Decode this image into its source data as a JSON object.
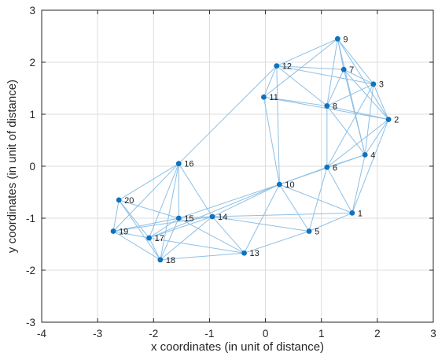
{
  "chart_data": {
    "type": "scatter",
    "title": "",
    "xlabel": "x coordinates (in unit of distance)",
    "ylabel": "y coordinates (in unit of distance)",
    "xlim": [
      -4,
      3
    ],
    "ylim": [
      -3,
      3
    ],
    "xticks": [
      -4,
      -3,
      -2,
      -1,
      0,
      1,
      2,
      3
    ],
    "yticks": [
      -3,
      -2,
      -1,
      0,
      1,
      2,
      3
    ],
    "grid": true,
    "colors": {
      "node": "#0f72bd",
      "edge": "#8ec0e6",
      "grid": "#dcdcdc",
      "axis": "#262626"
    },
    "nodes": [
      {
        "id": "1",
        "x": 1.55,
        "y": -0.9
      },
      {
        "id": "2",
        "x": 2.2,
        "y": 0.9
      },
      {
        "id": "3",
        "x": 1.93,
        "y": 1.58
      },
      {
        "id": "4",
        "x": 1.78,
        "y": 0.22
      },
      {
        "id": "5",
        "x": 0.78,
        "y": -1.25
      },
      {
        "id": "6",
        "x": 1.1,
        "y": -0.02
      },
      {
        "id": "7",
        "x": 1.4,
        "y": 1.86
      },
      {
        "id": "8",
        "x": 1.1,
        "y": 1.16
      },
      {
        "id": "9",
        "x": 1.29,
        "y": 2.45
      },
      {
        "id": "10",
        "x": 0.25,
        "y": -0.35
      },
      {
        "id": "11",
        "x": -0.03,
        "y": 1.33
      },
      {
        "id": "12",
        "x": 0.2,
        "y": 1.93
      },
      {
        "id": "13",
        "x": -0.38,
        "y": -1.67
      },
      {
        "id": "14",
        "x": -0.95,
        "y": -0.97
      },
      {
        "id": "15",
        "x": -1.55,
        "y": -1.0
      },
      {
        "id": "16",
        "x": -1.55,
        "y": 0.05
      },
      {
        "id": "17",
        "x": -2.08,
        "y": -1.38
      },
      {
        "id": "18",
        "x": -1.88,
        "y": -1.8
      },
      {
        "id": "19",
        "x": -2.72,
        "y": -1.25
      },
      {
        "id": "20",
        "x": -2.62,
        "y": -0.65
      }
    ],
    "edges": [
      [
        "9",
        "12"
      ],
      [
        "9",
        "7"
      ],
      [
        "9",
        "3"
      ],
      [
        "9",
        "2"
      ],
      [
        "9",
        "8"
      ],
      [
        "9",
        "4"
      ],
      [
        "9",
        "11"
      ],
      [
        "12",
        "7"
      ],
      [
        "12",
        "3"
      ],
      [
        "12",
        "8"
      ],
      [
        "12",
        "11"
      ],
      [
        "12",
        "10"
      ],
      [
        "12",
        "16"
      ],
      [
        "7",
        "3"
      ],
      [
        "7",
        "2"
      ],
      [
        "7",
        "8"
      ],
      [
        "7",
        "4"
      ],
      [
        "3",
        "2"
      ],
      [
        "3",
        "8"
      ],
      [
        "3",
        "4"
      ],
      [
        "3",
        "6"
      ],
      [
        "11",
        "8"
      ],
      [
        "11",
        "2"
      ],
      [
        "11",
        "10"
      ],
      [
        "8",
        "2"
      ],
      [
        "8",
        "6"
      ],
      [
        "8",
        "4"
      ],
      [
        "2",
        "4"
      ],
      [
        "2",
        "6"
      ],
      [
        "2",
        "1"
      ],
      [
        "4",
        "6"
      ],
      [
        "4",
        "1"
      ],
      [
        "4",
        "10"
      ],
      [
        "6",
        "10"
      ],
      [
        "6",
        "1"
      ],
      [
        "6",
        "5"
      ],
      [
        "10",
        "1"
      ],
      [
        "10",
        "5"
      ],
      [
        "10",
        "14"
      ],
      [
        "10",
        "13"
      ],
      [
        "10",
        "15"
      ],
      [
        "10",
        "17"
      ],
      [
        "1",
        "5"
      ],
      [
        "1",
        "14"
      ],
      [
        "5",
        "13"
      ],
      [
        "5",
        "14"
      ],
      [
        "13",
        "14"
      ],
      [
        "13",
        "15"
      ],
      [
        "13",
        "18"
      ],
      [
        "13",
        "17"
      ],
      [
        "14",
        "15"
      ],
      [
        "14",
        "16"
      ],
      [
        "14",
        "17"
      ],
      [
        "14",
        "18"
      ],
      [
        "14",
        "19"
      ],
      [
        "16",
        "15"
      ],
      [
        "16",
        "17"
      ],
      [
        "16",
        "18"
      ],
      [
        "16",
        "19"
      ],
      [
        "16",
        "20"
      ],
      [
        "15",
        "20"
      ],
      [
        "15",
        "17"
      ],
      [
        "15",
        "18"
      ],
      [
        "15",
        "19"
      ],
      [
        "20",
        "19"
      ],
      [
        "20",
        "17"
      ],
      [
        "20",
        "18"
      ],
      [
        "19",
        "17"
      ],
      [
        "19",
        "18"
      ],
      [
        "17",
        "18"
      ]
    ]
  }
}
